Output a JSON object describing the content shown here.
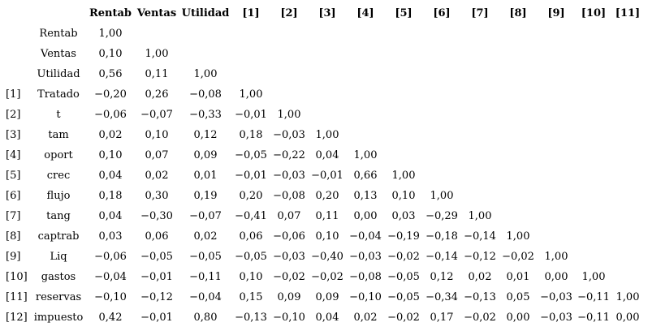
{
  "table": {
    "columns": [
      "Rentab",
      "Ventas",
      "Utilidad",
      "[1]",
      "[2]",
      "[3]",
      "[4]",
      "[5]",
      "[6]",
      "[7]",
      "[8]",
      "[9]",
      "[10]",
      "[11]"
    ],
    "rows": [
      {
        "label": "Rentab",
        "cells": [
          "1,00"
        ]
      },
      {
        "label": "Ventas",
        "cells": [
          "0,10",
          "1,00"
        ]
      },
      {
        "label": "Utilidad",
        "cells": [
          "0,56",
          "0,11",
          "1,00"
        ]
      },
      {
        "index": "[1]",
        "label": "Tratado",
        "cells": [
          "−0,20",
          "0,26",
          "−0,08",
          "1,00"
        ]
      },
      {
        "index": "[2]",
        "label": "t",
        "cells": [
          "−0,06",
          "−0,07",
          "−0,33",
          "−0,01",
          "1,00"
        ]
      },
      {
        "index": "[3]",
        "label": "tam",
        "cells": [
          "0,02",
          "0,10",
          "0,12",
          "0,18",
          "−0,03",
          "1,00"
        ]
      },
      {
        "index": "[4]",
        "label": "oport",
        "cells": [
          "0,10",
          "0,07",
          "0,09",
          "−0,05",
          "−0,22",
          "0,04",
          "1,00"
        ]
      },
      {
        "index": "[5]",
        "label": "crec",
        "cells": [
          "0,04",
          "0,02",
          "0,01",
          "−0,01",
          "−0,03",
          "−0,01",
          "0,66",
          "1,00"
        ]
      },
      {
        "index": "[6]",
        "label": "flujo",
        "cells": [
          "0,18",
          "0,30",
          "0,19",
          "0,20",
          "−0,08",
          "0,20",
          "0,13",
          "0,10",
          "1,00"
        ]
      },
      {
        "index": "[7]",
        "label": "tang",
        "cells": [
          "0,04",
          "−0,30",
          "−0,07",
          "−0,41",
          "0,07",
          "0,11",
          "0,00",
          "0,03",
          "−0,29",
          "1,00"
        ]
      },
      {
        "index": "[8]",
        "label": "captrab",
        "cells": [
          "0,03",
          "0,06",
          "0,02",
          "0,06",
          "−0,06",
          "0,10",
          "−0,04",
          "−0,19",
          "−0,18",
          "−0,14",
          "1,00"
        ]
      },
      {
        "index": "[9]",
        "label": "Liq",
        "cells": [
          "−0,06",
          "−0,05",
          "−0,05",
          "−0,05",
          "−0,03",
          "−0,40",
          "−0,03",
          "−0,02",
          "−0,14",
          "−0,12",
          "−0,02",
          "1,00"
        ]
      },
      {
        "index": "[10]",
        "label": "gastos",
        "cells": [
          "−0,04",
          "−0,01",
          "−0,11",
          "0,10",
          "−0,02",
          "−0,02",
          "−0,08",
          "−0,05",
          "0,12",
          "0,02",
          "0,01",
          "0,00",
          "1,00"
        ]
      },
      {
        "index": "[11]",
        "label": "reservas",
        "cells": [
          "−0,10",
          "−0,12",
          "−0,04",
          "0,15",
          "0,09",
          "0,09",
          "−0,10",
          "−0,05",
          "−0,34",
          "−0,13",
          "0,05",
          "−0,03",
          "−0,11",
          "1,00"
        ]
      },
      {
        "index": "[12]",
        "label": "impuesto",
        "cells": [
          "0,42",
          "−0,01",
          "0,80",
          "−0,13",
          "−0,10",
          "0,04",
          "0,02",
          "−0,02",
          "0,17",
          "−0,02",
          "0,00",
          "−0,03",
          "−0,11",
          "0,00"
        ]
      }
    ]
  }
}
